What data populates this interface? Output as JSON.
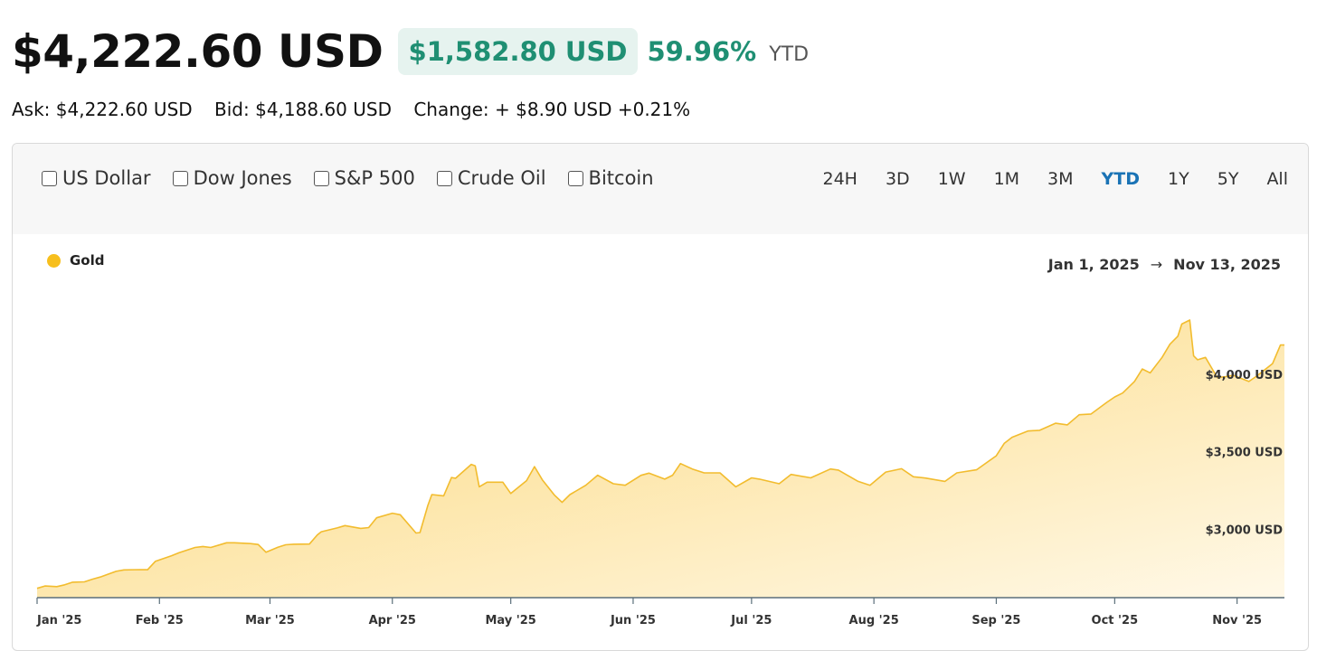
{
  "header": {
    "price": "$4,222.60 USD",
    "change": "$1,582.80 USD",
    "change_pct": "59.96%",
    "period": "YTD"
  },
  "quote": {
    "ask": "Ask: $4,222.60 USD",
    "bid": "Bid: $4,188.60 USD",
    "change": "Change: + $8.90 USD +0.21%"
  },
  "toggles": [
    {
      "label": "US Dollar",
      "checked": false
    },
    {
      "label": "Dow Jones",
      "checked": false
    },
    {
      "label": "S&P 500",
      "checked": false
    },
    {
      "label": "Crude Oil",
      "checked": false
    },
    {
      "label": "Bitcoin",
      "checked": false
    }
  ],
  "ranges": [
    "24H",
    "3D",
    "1W",
    "1M",
    "3M",
    "YTD",
    "1Y",
    "5Y",
    "All"
  ],
  "active_range": "YTD",
  "date_range": {
    "start": "Jan 1, 2025",
    "arrow": "→",
    "end": "Nov 13, 2025"
  },
  "colors": {
    "accent_green": "#1f8f73",
    "gold": "#f7bf1d",
    "active_range": "#1a73b5"
  },
  "chart_data": {
    "type": "area",
    "series": [
      {
        "name": "Gold"
      }
    ],
    "y_tick_labels": [
      "$3,000 USD",
      "$3,500 USD",
      "$4,000 USD"
    ],
    "y_ticks": [
      3000,
      3500,
      4000
    ],
    "x_tick_labels": [
      "Jan '25",
      "Feb '25",
      "Mar '25",
      "Apr '25",
      "May '25",
      "Jun '25",
      "Jul '25",
      "Aug '25",
      "Sep '25",
      "Oct '25",
      "Nov '25"
    ],
    "x_tick_dates": [
      "2025-01-01",
      "2025-02-01",
      "2025-03-01",
      "2025-04-01",
      "2025-05-01",
      "2025-06-01",
      "2025-07-01",
      "2025-08-01",
      "2025-09-01",
      "2025-10-01",
      "2025-11-01"
    ],
    "ylim": [
      2565,
      4560
    ],
    "xlim": [
      "2025-01-01",
      "2025-11-13"
    ],
    "points": [
      [
        "2025-01-01",
        2625
      ],
      [
        "2025-01-03",
        2640
      ],
      [
        "2025-01-06",
        2636
      ],
      [
        "2025-01-08",
        2648
      ],
      [
        "2025-01-10",
        2665
      ],
      [
        "2025-01-13",
        2667
      ],
      [
        "2025-01-15",
        2684
      ],
      [
        "2025-01-17",
        2698
      ],
      [
        "2025-01-21",
        2735
      ],
      [
        "2025-01-23",
        2744
      ],
      [
        "2025-01-27",
        2746
      ],
      [
        "2025-01-29",
        2745
      ],
      [
        "2025-01-31",
        2800
      ],
      [
        "2025-02-04",
        2835
      ],
      [
        "2025-02-06",
        2855
      ],
      [
        "2025-02-10",
        2889
      ],
      [
        "2025-02-12",
        2895
      ],
      [
        "2025-02-14",
        2889
      ],
      [
        "2025-02-18",
        2919
      ],
      [
        "2025-02-20",
        2919
      ],
      [
        "2025-02-24",
        2914
      ],
      [
        "2025-02-26",
        2908
      ],
      [
        "2025-02-28",
        2858
      ],
      [
        "2025-03-03",
        2890
      ],
      [
        "2025-03-05",
        2906
      ],
      [
        "2025-03-07",
        2910
      ],
      [
        "2025-03-11",
        2911
      ],
      [
        "2025-03-13",
        2970
      ],
      [
        "2025-03-14",
        2990
      ],
      [
        "2025-03-18",
        3015
      ],
      [
        "2025-03-20",
        3030
      ],
      [
        "2025-03-24",
        3012
      ],
      [
        "2025-03-26",
        3017
      ],
      [
        "2025-03-28",
        3080
      ],
      [
        "2025-04-01",
        3110
      ],
      [
        "2025-04-03",
        3100
      ],
      [
        "2025-04-07",
        2982
      ],
      [
        "2025-04-08",
        2985
      ],
      [
        "2025-04-10",
        3160
      ],
      [
        "2025-04-11",
        3230
      ],
      [
        "2025-04-14",
        3222
      ],
      [
        "2025-04-16",
        3340
      ],
      [
        "2025-04-17",
        3335
      ],
      [
        "2025-04-21",
        3425
      ],
      [
        "2025-04-22",
        3415
      ],
      [
        "2025-04-23",
        3280
      ],
      [
        "2025-04-25",
        3310
      ],
      [
        "2025-04-29",
        3310
      ],
      [
        "2025-05-01",
        3237
      ],
      [
        "2025-05-05",
        3320
      ],
      [
        "2025-05-07",
        3410
      ],
      [
        "2025-05-09",
        3325
      ],
      [
        "2025-05-12",
        3228
      ],
      [
        "2025-05-14",
        3180
      ],
      [
        "2025-05-16",
        3230
      ],
      [
        "2025-05-20",
        3290
      ],
      [
        "2025-05-23",
        3355
      ],
      [
        "2025-05-27",
        3300
      ],
      [
        "2025-05-30",
        3290
      ],
      [
        "2025-06-03",
        3354
      ],
      [
        "2025-06-05",
        3368
      ],
      [
        "2025-06-09",
        3330
      ],
      [
        "2025-06-11",
        3355
      ],
      [
        "2025-06-13",
        3430
      ],
      [
        "2025-06-16",
        3395
      ],
      [
        "2025-06-19",
        3370
      ],
      [
        "2025-06-23",
        3370
      ],
      [
        "2025-06-27",
        3280
      ],
      [
        "2025-07-01",
        3338
      ],
      [
        "2025-07-03",
        3330
      ],
      [
        "2025-07-08",
        3300
      ],
      [
        "2025-07-11",
        3360
      ],
      [
        "2025-07-16",
        3338
      ],
      [
        "2025-07-21",
        3395
      ],
      [
        "2025-07-23",
        3388
      ],
      [
        "2025-07-28",
        3315
      ],
      [
        "2025-07-31",
        3290
      ],
      [
        "2025-08-04",
        3375
      ],
      [
        "2025-08-08",
        3397
      ],
      [
        "2025-08-11",
        3345
      ],
      [
        "2025-08-14",
        3337
      ],
      [
        "2025-08-19",
        3315
      ],
      [
        "2025-08-22",
        3370
      ],
      [
        "2025-08-27",
        3390
      ],
      [
        "2025-09-01",
        3480
      ],
      [
        "2025-09-03",
        3560
      ],
      [
        "2025-09-05",
        3600
      ],
      [
        "2025-09-09",
        3640
      ],
      [
        "2025-09-12",
        3645
      ],
      [
        "2025-09-16",
        3690
      ],
      [
        "2025-09-19",
        3680
      ],
      [
        "2025-09-22",
        3745
      ],
      [
        "2025-09-25",
        3750
      ],
      [
        "2025-09-29",
        3825
      ],
      [
        "2025-10-01",
        3860
      ],
      [
        "2025-10-03",
        3885
      ],
      [
        "2025-10-06",
        3960
      ],
      [
        "2025-10-08",
        4040
      ],
      [
        "2025-10-10",
        4015
      ],
      [
        "2025-10-13",
        4115
      ],
      [
        "2025-10-15",
        4200
      ],
      [
        "2025-10-17",
        4252
      ],
      [
        "2025-10-18",
        4330
      ],
      [
        "2025-10-20",
        4356
      ],
      [
        "2025-10-21",
        4125
      ],
      [
        "2025-10-22",
        4100
      ],
      [
        "2025-10-24",
        4115
      ],
      [
        "2025-10-27",
        3985
      ],
      [
        "2025-10-29",
        3990
      ],
      [
        "2025-10-31",
        4000
      ],
      [
        "2025-11-04",
        3960
      ],
      [
        "2025-11-06",
        3995
      ],
      [
        "2025-11-10",
        4075
      ],
      [
        "2025-11-12",
        4195
      ],
      [
        "2025-11-13",
        4195
      ]
    ]
  }
}
